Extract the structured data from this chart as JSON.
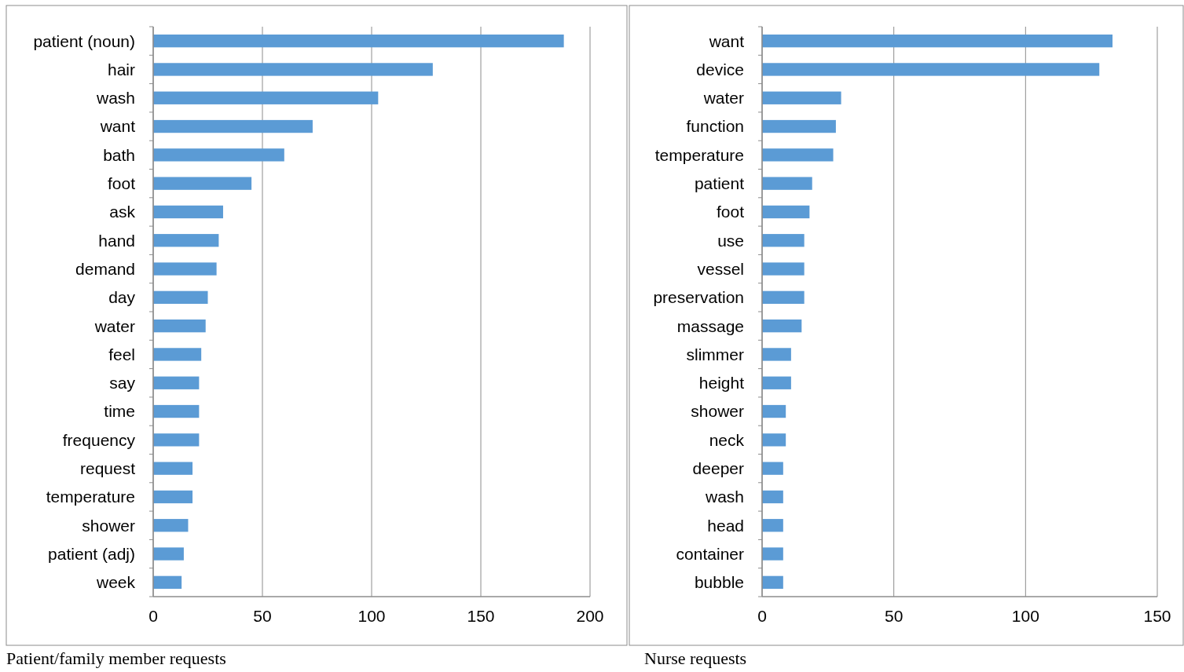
{
  "chart_data": [
    {
      "type": "bar",
      "orientation": "horizontal",
      "title": "Patient/family member requests",
      "categories": [
        "patient (noun)",
        "hair",
        "wash",
        "want",
        "bath",
        "foot",
        "ask",
        "hand",
        "demand",
        "day",
        "water",
        "feel",
        "say",
        "time",
        "frequency",
        "request",
        "temperature",
        "shower",
        "patient (adj)",
        "week"
      ],
      "values": [
        188,
        128,
        103,
        73,
        60,
        45,
        32,
        30,
        29,
        25,
        24,
        22,
        21,
        21,
        21,
        18,
        18,
        16,
        14,
        13
      ],
      "color": "#5b9bd5",
      "xlim": [
        0,
        200
      ],
      "xticks": [
        0,
        50,
        100,
        150,
        200
      ],
      "grid": "x"
    },
    {
      "type": "bar",
      "orientation": "horizontal",
      "title": "Nurse requests",
      "categories": [
        "want",
        "device",
        "water",
        "function",
        "temperature",
        "patient",
        "foot",
        "use",
        "vessel",
        "preservation",
        "massage",
        "slimmer",
        "height",
        "shower",
        "neck",
        "deeper",
        "wash",
        "head",
        "container",
        "bubble"
      ],
      "values": [
        133,
        128,
        30,
        28,
        27,
        19,
        18,
        16,
        16,
        16,
        15,
        11,
        11,
        9,
        9,
        8,
        8,
        8,
        8,
        8
      ],
      "color": "#5b9bd5",
      "xlim": [
        0,
        150
      ],
      "xticks": [
        0,
        50,
        100,
        150
      ],
      "grid": "x"
    }
  ]
}
